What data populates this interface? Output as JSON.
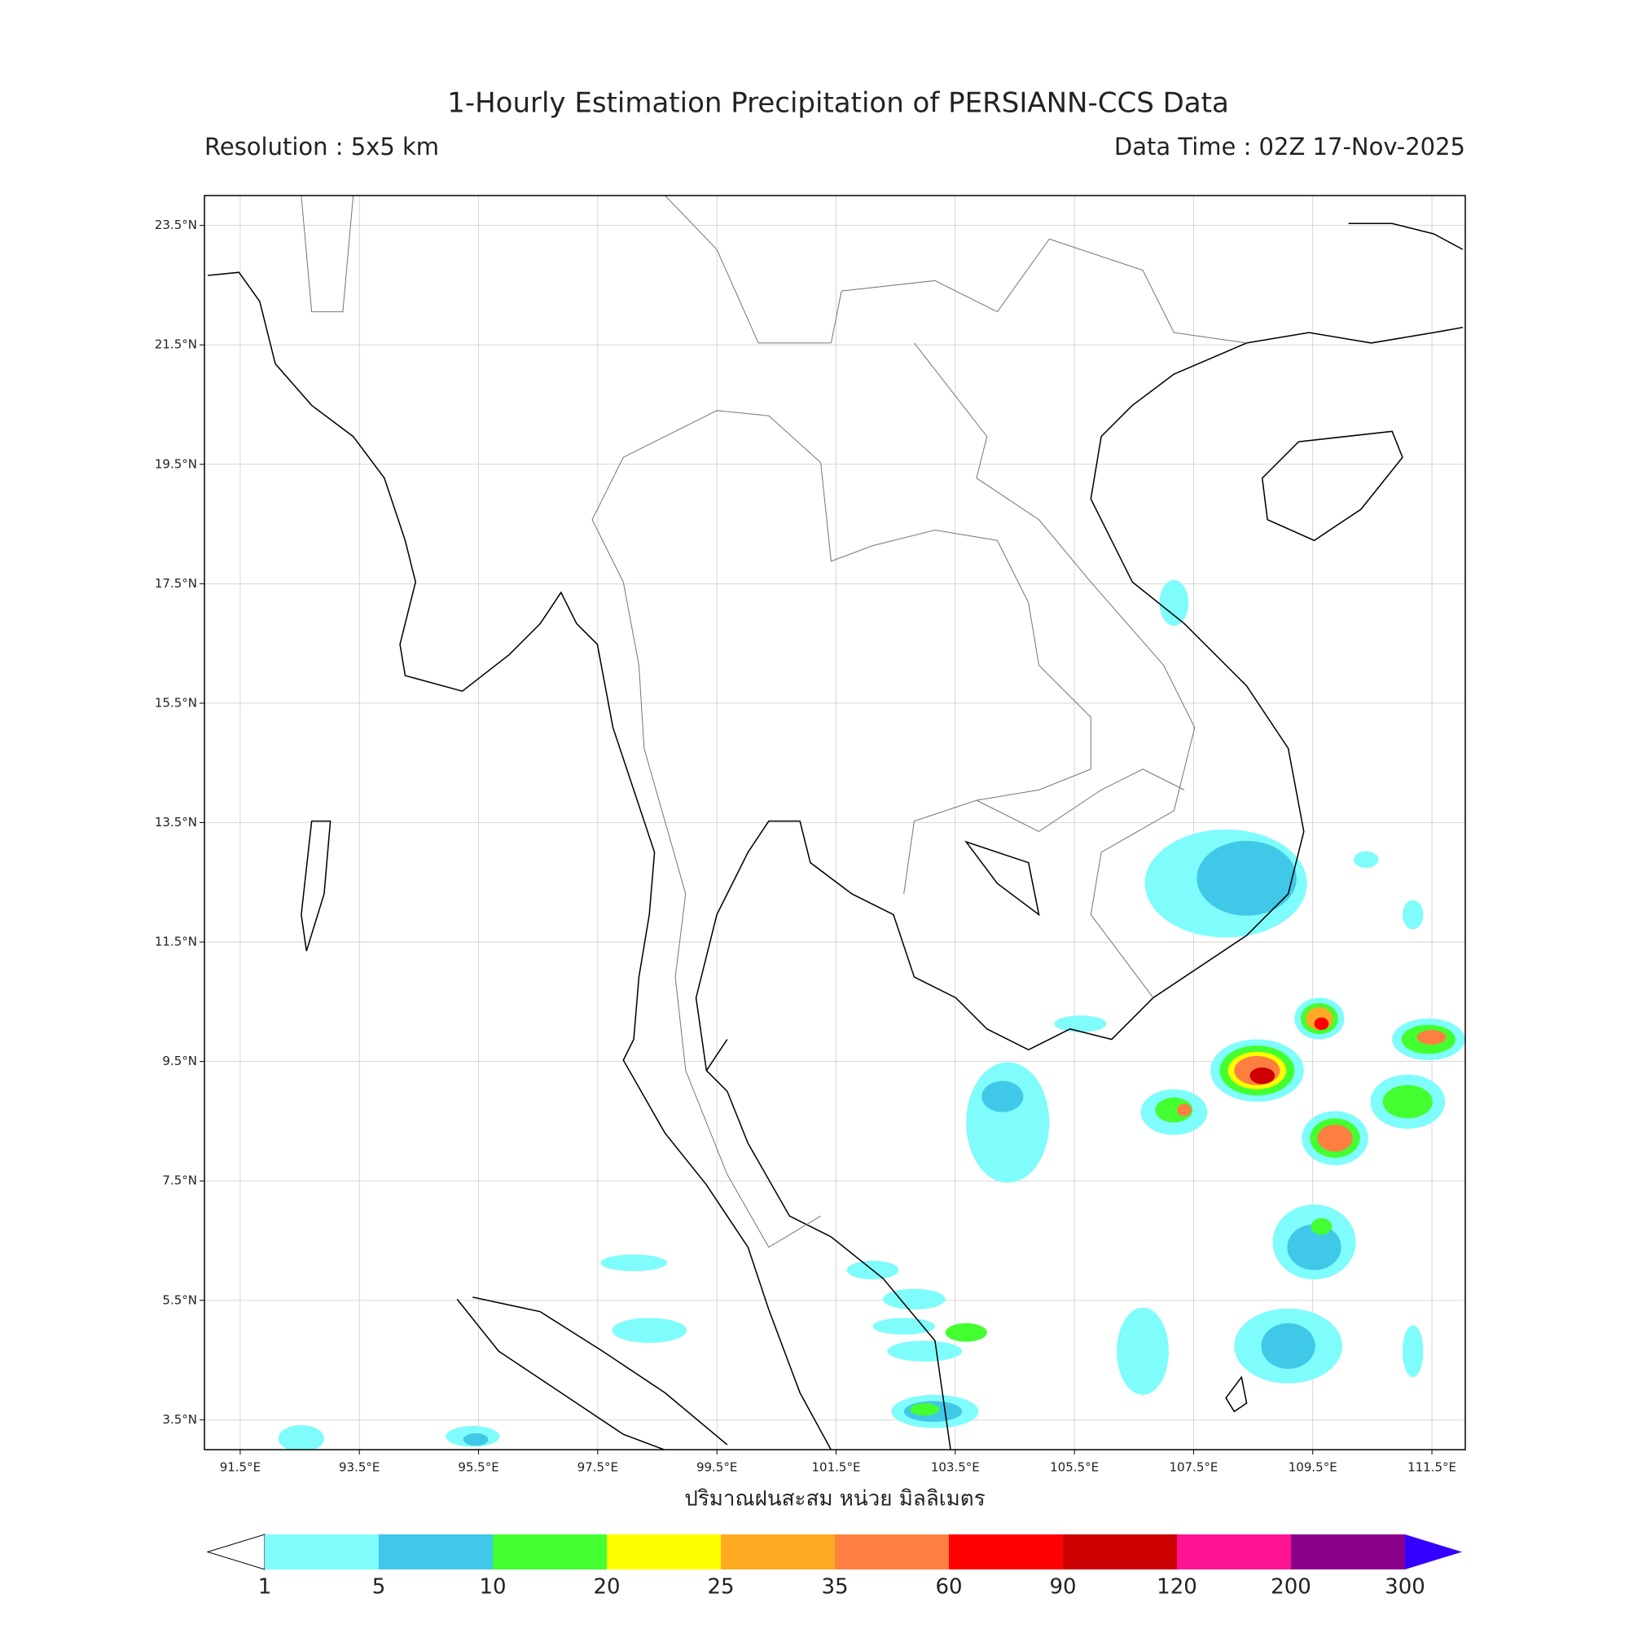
{
  "title": "1-Hourly Estimation Precipitation of PERSIANN-CCS Data",
  "resolution": "Resolution : 5x5 km",
  "data_time": "Data Time : 02Z 17-Nov-2025",
  "map": {
    "xlim": [
      90.9,
      112.06
    ],
    "ylim": [
      3.0,
      24.0
    ],
    "grid": true,
    "xticks": [
      {
        "value": 91.5,
        "label": "91.5°E"
      },
      {
        "value": 93.5,
        "label": "93.5°E"
      },
      {
        "value": 95.5,
        "label": "95.5°E"
      },
      {
        "value": 97.5,
        "label": "97.5°E"
      },
      {
        "value": 99.5,
        "label": "99.5°E"
      },
      {
        "value": 101.5,
        "label": "101.5°E"
      },
      {
        "value": 103.5,
        "label": "103.5°E"
      },
      {
        "value": 105.5,
        "label": "105.5°E"
      },
      {
        "value": 107.5,
        "label": "107.5°E"
      },
      {
        "value": 109.5,
        "label": "109.5°E"
      },
      {
        "value": 111.5,
        "label": "111.5°E"
      }
    ],
    "yticks": [
      {
        "value": 3.5,
        "label": "3.5°N"
      },
      {
        "value": 5.5,
        "label": "5.5°N"
      },
      {
        "value": 7.5,
        "label": "7.5°N"
      },
      {
        "value": 9.5,
        "label": "9.5°N"
      },
      {
        "value": 11.5,
        "label": "11.5°N"
      },
      {
        "value": 13.5,
        "label": "13.5°N"
      },
      {
        "value": 15.5,
        "label": "15.5°N"
      },
      {
        "value": 17.5,
        "label": "17.5°N"
      },
      {
        "value": 19.5,
        "label": "19.5°N"
      },
      {
        "value": 21.5,
        "label": "21.5°N"
      },
      {
        "value": 23.5,
        "label": "23.5°N"
      }
    ],
    "x_label": "ปริมาณฝนสะสม หน่วย มิลลิเมตร"
  },
  "colorbar": {
    "levels": [
      1,
      5,
      10,
      20,
      25,
      35,
      60,
      90,
      120,
      200,
      300
    ],
    "colors": [
      "#7ffcfc",
      "#40c8e8",
      "#44ff30",
      "#ffff00",
      "#ffaa22",
      "#ff7f40",
      "#ff0000",
      "#cc0000",
      "#ff1493",
      "#8b008b"
    ],
    "under_color": "#ffffff",
    "over_color": "#3300ff"
  }
}
